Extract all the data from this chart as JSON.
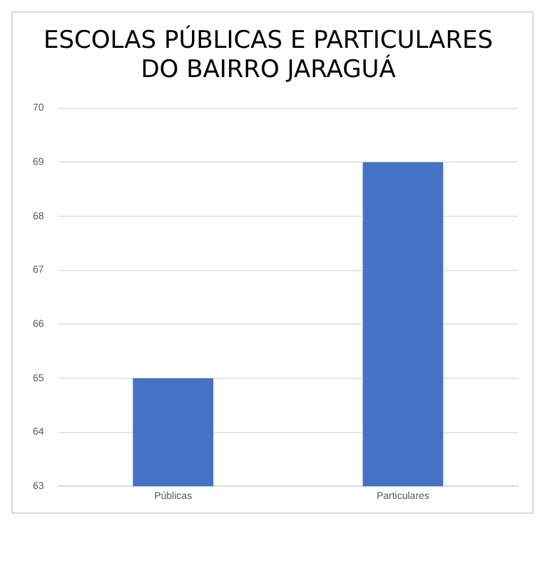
{
  "chart_data": {
    "type": "bar",
    "title": "ESCOLAS PÚBLICAS E PARTICULARES\nDO BAIRRO JARAGUÁ",
    "categories": [
      "Públicas",
      "Particulares"
    ],
    "values": [
      65,
      69
    ],
    "color": "#4472c4",
    "ylim": [
      63,
      70
    ],
    "yticks": [
      63,
      64,
      65,
      66,
      67,
      68,
      69,
      70
    ],
    "grid": "y",
    "legend": false
  }
}
